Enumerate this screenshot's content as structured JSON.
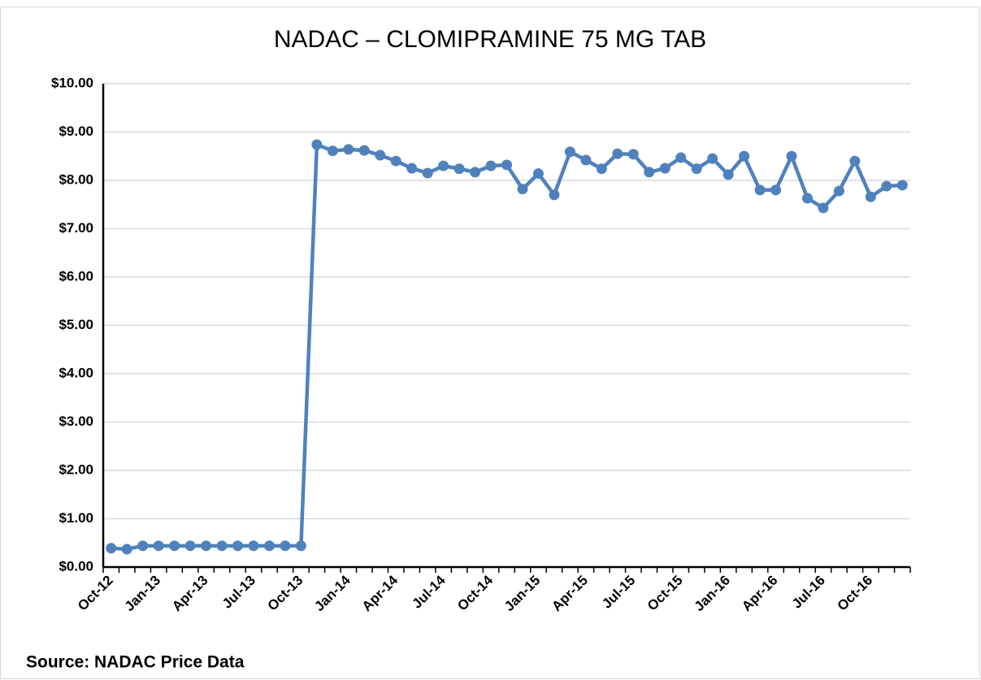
{
  "chart_data": {
    "type": "line",
    "title": "NADAC – CLOMIPRAMINE 75 MG TAB",
    "source": "Source: NADAC Price Data",
    "categories": [
      "Oct-12",
      null,
      null,
      "Jan-13",
      null,
      null,
      "Apr-13",
      null,
      null,
      "Jul-13",
      null,
      null,
      "Oct-13",
      null,
      null,
      "Jan-14",
      null,
      null,
      "Apr-14",
      null,
      null,
      "Jul-14",
      null,
      null,
      "Oct-14",
      null,
      null,
      "Jan-15",
      null,
      null,
      "Apr-15",
      null,
      null,
      "Jul-15",
      null,
      null,
      "Oct-15",
      null,
      null,
      "Jan-16",
      null,
      null,
      "Apr-16",
      null,
      null,
      "Jul-16",
      null,
      null,
      "Oct-16",
      null,
      null
    ],
    "series": [
      {
        "name": "NADAC",
        "color": "#4f81bd",
        "values": [
          0.39,
          0.37,
          0.44,
          0.44,
          0.44,
          0.44,
          0.44,
          0.44,
          0.44,
          0.44,
          0.44,
          0.44,
          0.44,
          8.74,
          8.61,
          8.64,
          8.62,
          8.52,
          8.4,
          8.25,
          8.15,
          8.3,
          8.24,
          8.17,
          8.3,
          8.32,
          7.82,
          8.14,
          7.7,
          8.59,
          8.42,
          8.24,
          8.55,
          8.54,
          8.17,
          8.25,
          8.47,
          8.24,
          8.45,
          8.12,
          8.5,
          7.8,
          7.8,
          8.5,
          7.63,
          7.43,
          7.78,
          8.4,
          7.66,
          7.88,
          7.9
        ]
      }
    ],
    "ylim": [
      0,
      10
    ],
    "yticks": [
      {
        "value": 0,
        "label": "$0.00"
      },
      {
        "value": 1,
        "label": "$1.00"
      },
      {
        "value": 2,
        "label": "$2.00"
      },
      {
        "value": 3,
        "label": "$3.00"
      },
      {
        "value": 4,
        "label": "$4.00"
      },
      {
        "value": 5,
        "label": "$5.00"
      },
      {
        "value": 6,
        "label": "$6.00"
      },
      {
        "value": 7,
        "label": "$7.00"
      },
      {
        "value": 8,
        "label": "$8.00"
      },
      {
        "value": 9,
        "label": "$9.00"
      },
      {
        "value": 10,
        "label": "$10.00"
      }
    ],
    "grid": true
  }
}
